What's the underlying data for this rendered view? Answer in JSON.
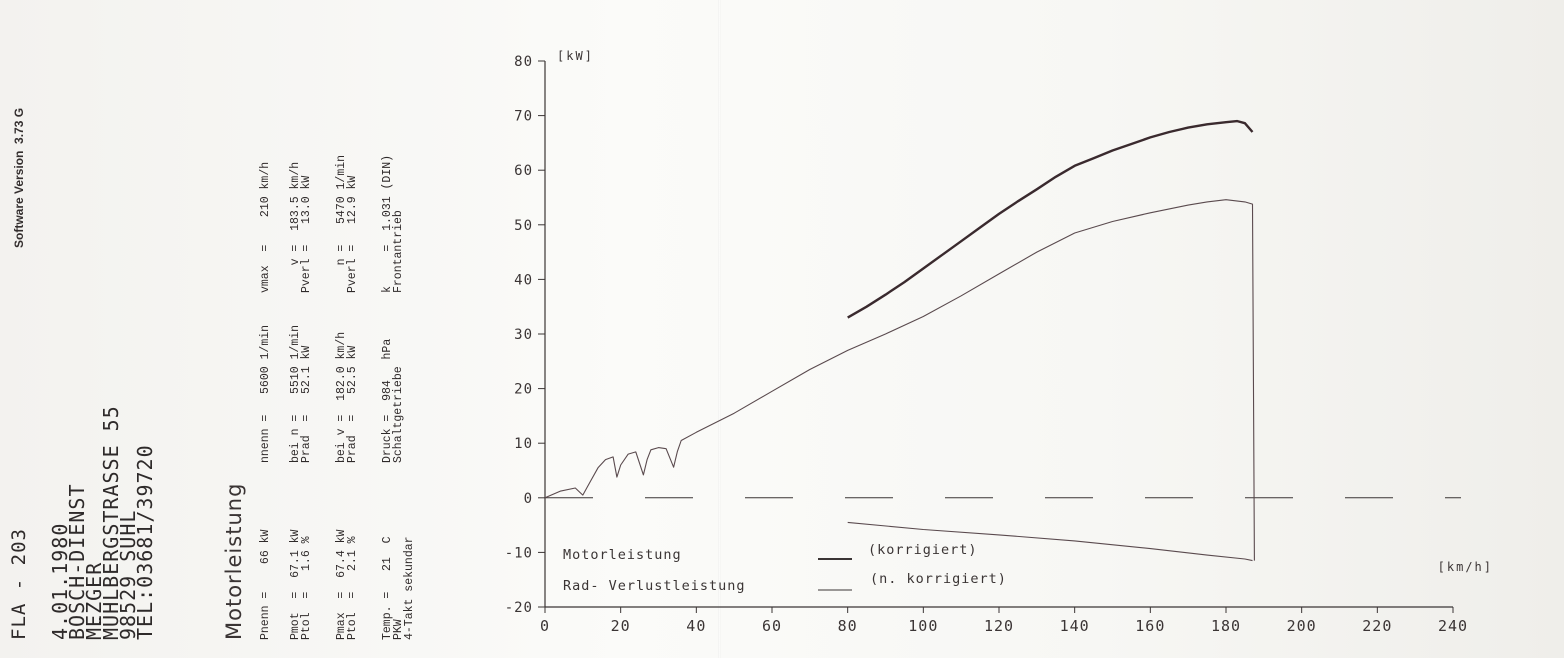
{
  "header": {
    "station": "FLA - 203",
    "address_lines": [
      "4.01.1980",
      "BOSCH-DIENST",
      "MEZGER",
      "MÜHLBERGSTRASSE 55",
      "98529 SUHL",
      "TEL:03681/39720"
    ],
    "software_version": "Software Version  3.73 G",
    "report_title": "Motorleistung"
  },
  "specs": {
    "col1": [
      "Pnenn =    66 kW",
      "Pmot  =  67.1 kW",
      "Ptol  =   1.6 %",
      "Pmax  =  67.4 kW",
      "Ptol  =   2.1 %",
      "Temp. =   21  C",
      "PKW",
      "4-Takt sekundar"
    ],
    "col2": [
      "nnenn =   5600 1/min",
      "bei n =   5510 1/min",
      "Prad  =   52.1 kW",
      "bei v =  182.0 km/h",
      "Prad  =   52.5 kW",
      "Druck =  984   hPa",
      "Schaltgetriebe"
    ],
    "col3": [
      "vmax  =    210 km/h",
      "    v =  183.5 km/h",
      "Pverl =   13.0 kW",
      "    n =   5470 1/min",
      "Pverl =   12.9 kW",
      "k     =  1.031 (DIN)",
      "Frontantrieb"
    ]
  },
  "chart_data": {
    "type": "line",
    "title": "",
    "xlabel": "[km/h]",
    "ylabel": "[kW]",
    "xlim": [
      0,
      240
    ],
    "ylim": [
      -20,
      80
    ],
    "x_ticks": [
      "0",
      "20",
      "40",
      "60",
      "80",
      "100",
      "120",
      "140",
      "160",
      "180",
      "200",
      "220",
      "240"
    ],
    "y_ticks": [
      "-20",
      "-10",
      "0",
      "10",
      "20",
      "30",
      "40",
      "50",
      "60",
      "70",
      "80"
    ],
    "legend": {
      "placement": "bottom-left",
      "entries": [
        {
          "label": "Motorleistung",
          "suffix": "(korrigiert)"
        },
        {
          "label": "Rad- Verlustleistung",
          "suffix": "(n. korrigiert)"
        }
      ]
    },
    "series": [
      {
        "name": "Motorleistung",
        "style": "bold",
        "x": [
          80,
          85,
          90,
          95,
          100,
          105,
          110,
          115,
          120,
          125,
          130,
          135,
          140,
          145,
          150,
          155,
          160,
          165,
          170,
          175,
          180,
          183,
          185,
          187
        ],
        "y": [
          33.0,
          35.0,
          37.2,
          39.5,
          42.0,
          44.5,
          47.0,
          49.5,
          52.0,
          54.3,
          56.5,
          58.8,
          60.8,
          62.2,
          63.6,
          64.8,
          66.0,
          67.0,
          67.8,
          68.4,
          68.8,
          69.0,
          68.6,
          67.0
        ]
      },
      {
        "name": "Rad- Verlustleistung",
        "style": "thin",
        "x": [
          0,
          4,
          8,
          10,
          12,
          14,
          16,
          18,
          19,
          20,
          22,
          24,
          26,
          27,
          28,
          30,
          32,
          34,
          35,
          36,
          40,
          50,
          60,
          70,
          80,
          90,
          100,
          110,
          120,
          130,
          140,
          150,
          160,
          170,
          175,
          180,
          185,
          187,
          187.5
        ],
        "y": [
          0.0,
          1.2,
          1.8,
          0.5,
          3.0,
          5.5,
          7.0,
          7.5,
          3.8,
          6.0,
          8.0,
          8.4,
          4.2,
          7.0,
          8.8,
          9.2,
          9.0,
          5.6,
          8.5,
          10.5,
          12.0,
          15.5,
          19.5,
          23.5,
          27.0,
          30.0,
          33.2,
          37.0,
          41.0,
          45.0,
          48.5,
          50.6,
          52.2,
          53.6,
          54.2,
          54.6,
          54.2,
          53.8,
          -11.5
        ]
      },
      {
        "name": "Verlustleistung",
        "style": "thin",
        "x": [
          80,
          100,
          120,
          140,
          160,
          175,
          185,
          187
        ],
        "y": [
          -4.5,
          -5.8,
          -6.8,
          -7.9,
          -9.3,
          -10.5,
          -11.2,
          -11.5
        ]
      }
    ],
    "reference_line": {
      "y": 0,
      "style": "dashed"
    }
  }
}
